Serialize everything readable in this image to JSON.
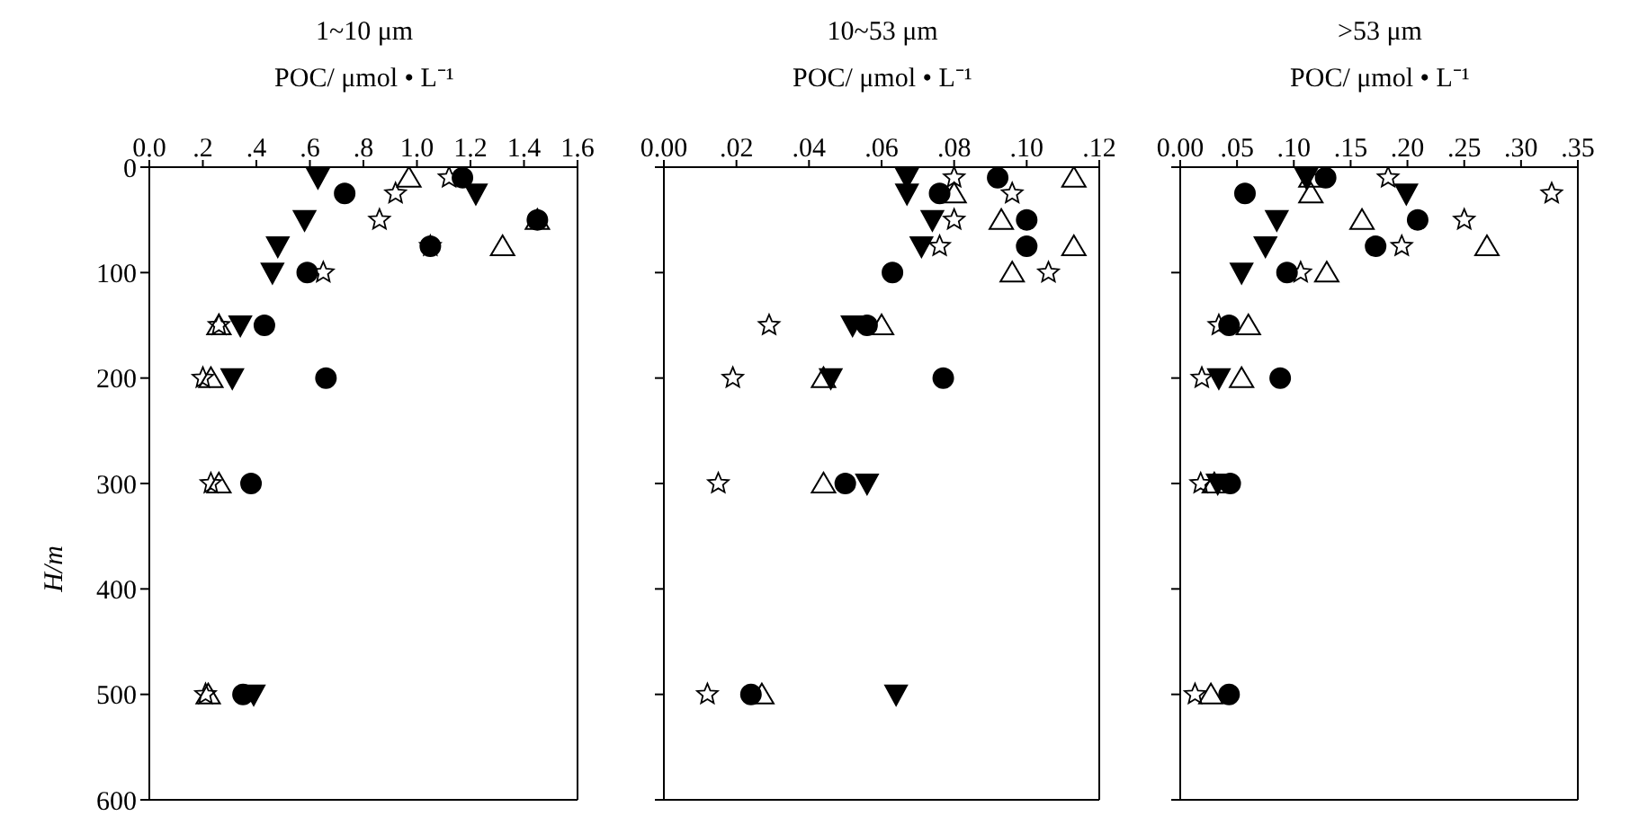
{
  "chart_data": [
    {
      "type": "scatter",
      "title": "1~10 μm",
      "xlabel": "POC/ μmol • L⁻¹",
      "ylabel": "H/m",
      "xlim": [
        0,
        1.6
      ],
      "xticks": [
        {
          "value": 0,
          "label": "0.0"
        },
        {
          "value": 0.2,
          "label": ".2"
        },
        {
          "value": 0.4,
          "label": ".4"
        },
        {
          "value": 0.6,
          "label": ".6"
        },
        {
          "value": 0.8,
          "label": ".8"
        },
        {
          "value": 1.0,
          "label": "1.0"
        },
        {
          "value": 1.2,
          "label": "1.2"
        },
        {
          "value": 1.4,
          "label": "1.4"
        },
        {
          "value": 1.6,
          "label": "1.6"
        }
      ],
      "ylim": [
        600,
        0
      ],
      "yticks": [
        0,
        100,
        200,
        300,
        400,
        500,
        600
      ],
      "series": [
        {
          "color": "#000000",
          "marker": "circle",
          "x": [
            1.17,
            0.73,
            1.45,
            1.05,
            0.59,
            0.43,
            0.66,
            0.38,
            0.35
          ],
          "values": [
            10,
            25,
            50,
            75,
            100,
            150,
            200,
            300,
            500
          ]
        },
        {
          "color": "#000000",
          "marker": "triangle-down",
          "x": [
            0.63,
            1.22,
            0.58,
            0.48,
            0.46,
            0.34,
            0.31,
            0.39
          ],
          "values": [
            10,
            25,
            50,
            75,
            100,
            150,
            200,
            500
          ]
        },
        {
          "color": "#000000",
          "marker": "triangle",
          "x": [
            0.97,
            1.45,
            1.32,
            0.26,
            0.23,
            0.26,
            0.22
          ],
          "values": [
            10,
            50,
            75,
            150,
            200,
            300,
            500
          ]
        },
        {
          "color": "#000000",
          "marker": "star",
          "x": [
            1.12,
            0.92,
            0.86,
            1.05,
            0.65,
            0.26,
            0.2,
            0.23,
            0.21
          ],
          "values": [
            10,
            25,
            50,
            75,
            100,
            150,
            200,
            300,
            500
          ]
        }
      ]
    },
    {
      "type": "scatter",
      "title": "10~53 μm",
      "xlabel": "POC/ μmol • L⁻¹",
      "xlim": [
        0,
        0.12
      ],
      "xticks": [
        {
          "value": 0,
          "label": "0.00"
        },
        {
          "value": 0.02,
          "label": ".02"
        },
        {
          "value": 0.04,
          "label": ".04"
        },
        {
          "value": 0.06,
          "label": ".06"
        },
        {
          "value": 0.08,
          "label": ".08"
        },
        {
          "value": 0.1,
          "label": ".10"
        },
        {
          "value": 0.12,
          "label": ".12"
        }
      ],
      "ylim": [
        600,
        0
      ],
      "yticks": [
        0,
        100,
        200,
        300,
        400,
        500,
        600
      ],
      "tick_labels": "x",
      "series": [
        {
          "color": "#000000",
          "marker": "circle",
          "x": [
            0.092,
            0.076,
            0.1,
            0.1,
            0.063,
            0.056,
            0.077,
            0.05,
            0.024
          ],
          "values": [
            10,
            25,
            50,
            75,
            100,
            150,
            200,
            300,
            500
          ]
        },
        {
          "color": "#000000",
          "marker": "triangle-down",
          "x": [
            0.067,
            0.067,
            0.074,
            0.071,
            0.052,
            0.046,
            0.056,
            0.064
          ],
          "values": [
            10,
            25,
            50,
            75,
            150,
            200,
            300,
            500
          ]
        },
        {
          "color": "#000000",
          "marker": "triangle",
          "x": [
            0.113,
            0.08,
            0.093,
            0.113,
            0.096,
            0.06,
            0.044,
            0.044,
            0.027
          ],
          "values": [
            10,
            25,
            50,
            75,
            100,
            150,
            200,
            300,
            500
          ]
        },
        {
          "color": "#000000",
          "marker": "star",
          "x": [
            0.08,
            0.096,
            0.08,
            0.076,
            0.106,
            0.029,
            0.019,
            0.015,
            0.012
          ],
          "values": [
            10,
            25,
            50,
            75,
            100,
            150,
            200,
            300,
            500
          ]
        }
      ]
    },
    {
      "type": "scatter",
      "title": ">53 μm",
      "xlabel": "POC/ μmol • L⁻¹",
      "xlim": [
        0,
        0.35
      ],
      "xticks": [
        {
          "value": 0,
          "label": "0.00"
        },
        {
          "value": 0.05,
          "label": ".05"
        },
        {
          "value": 0.1,
          "label": ".10"
        },
        {
          "value": 0.15,
          "label": ".15"
        },
        {
          "value": 0.2,
          "label": ".20"
        },
        {
          "value": 0.25,
          "label": ".25"
        },
        {
          "value": 0.3,
          "label": ".30"
        },
        {
          "value": 0.35,
          "label": ".35"
        }
      ],
      "ylim": [
        600,
        0
      ],
      "yticks": [
        0,
        100,
        200,
        300,
        400,
        500,
        600
      ],
      "tick_labels": "x",
      "series": [
        {
          "color": "#000000",
          "marker": "circle",
          "x": [
            0.128,
            0.057,
            0.209,
            0.172,
            0.094,
            0.043,
            0.088,
            0.044,
            0.043
          ],
          "values": [
            10,
            25,
            50,
            75,
            100,
            150,
            200,
            300,
            500
          ]
        },
        {
          "color": "#000000",
          "marker": "triangle-down",
          "x": [
            0.111,
            0.199,
            0.085,
            0.075,
            0.054,
            0.034,
            0.033
          ],
          "values": [
            10,
            25,
            50,
            75,
            100,
            200,
            300
          ]
        },
        {
          "color": "#000000",
          "marker": "triangle",
          "x": [
            0.115,
            0.115,
            0.16,
            0.27,
            0.129,
            0.06,
            0.054,
            0.03,
            0.027
          ],
          "values": [
            10,
            25,
            50,
            75,
            100,
            150,
            200,
            300,
            500
          ]
        },
        {
          "color": "#000000",
          "marker": "star",
          "x": [
            0.183,
            0.327,
            0.25,
            0.195,
            0.106,
            0.034,
            0.019,
            0.018,
            0.013
          ],
          "values": [
            10,
            25,
            50,
            75,
            100,
            150,
            200,
            300,
            500
          ]
        }
      ]
    }
  ]
}
